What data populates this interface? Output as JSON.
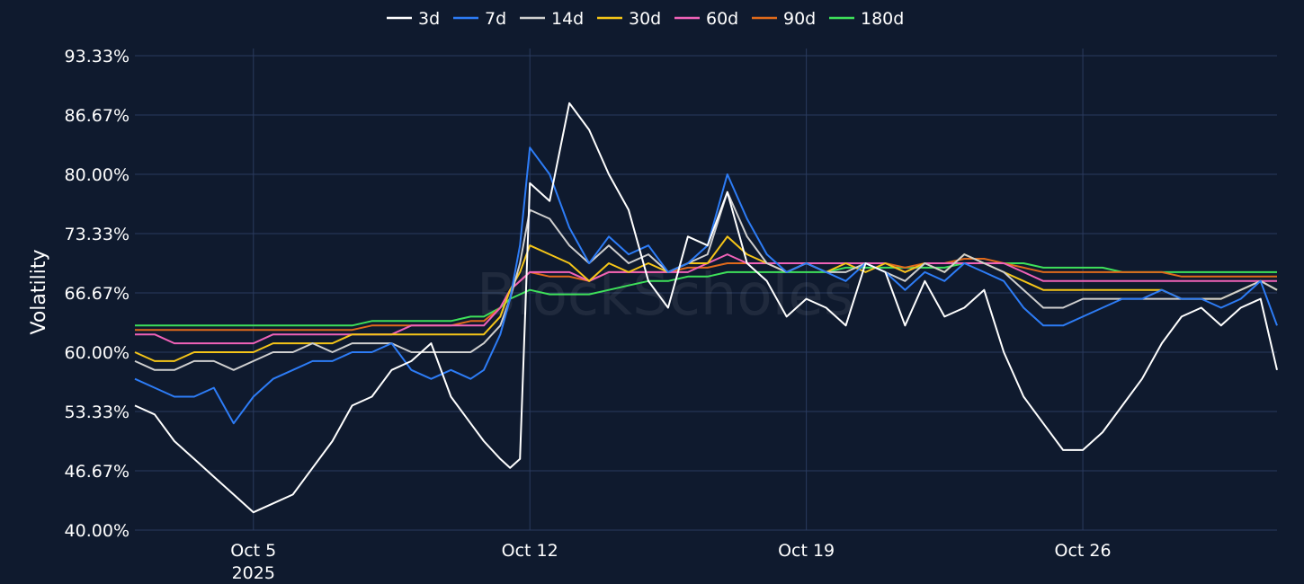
{
  "chart_data": {
    "type": "line",
    "ylabel": "Volatility",
    "watermark": "BlockScholes",
    "legend_position": "top-center",
    "grid": true,
    "x_range": [
      "2025-10-02T00:00",
      "2025-10-30T22:00"
    ],
    "ylim": [
      40.0,
      93.33
    ],
    "y_ticks": [
      "40.00%",
      "46.67%",
      "53.33%",
      "60.00%",
      "66.67%",
      "73.33%",
      "80.00%",
      "86.67%",
      "93.33%"
    ],
    "y_tick_values": [
      40.0,
      46.67,
      53.33,
      60.0,
      66.67,
      73.33,
      80.0,
      86.67,
      93.33
    ],
    "x_ticks": [
      {
        "value": "2025-10-05",
        "label": "Oct 5",
        "sublabel": "2025"
      },
      {
        "value": "2025-10-12",
        "label": "Oct 12",
        "sublabel": ""
      },
      {
        "value": "2025-10-19",
        "label": "Oct 19",
        "sublabel": ""
      },
      {
        "value": "2025-10-26",
        "label": "Oct 26",
        "sublabel": ""
      }
    ],
    "x": [
      "2025-10-02T00:00",
      "2025-10-02T12:00",
      "2025-10-03T00:00",
      "2025-10-03T12:00",
      "2025-10-04T00:00",
      "2025-10-04T12:00",
      "2025-10-05T00:00",
      "2025-10-05T12:00",
      "2025-10-06T00:00",
      "2025-10-06T12:00",
      "2025-10-07T00:00",
      "2025-10-07T12:00",
      "2025-10-08T00:00",
      "2025-10-08T12:00",
      "2025-10-09T00:00",
      "2025-10-09T12:00",
      "2025-10-10T00:00",
      "2025-10-10T12:00",
      "2025-10-10T20:00",
      "2025-10-11T06:00",
      "2025-10-11T12:00",
      "2025-10-11T18:00",
      "2025-10-12T00:00",
      "2025-10-12T12:00",
      "2025-10-13T00:00",
      "2025-10-13T12:00",
      "2025-10-14T00:00",
      "2025-10-14T12:00",
      "2025-10-15T00:00",
      "2025-10-15T12:00",
      "2025-10-16T00:00",
      "2025-10-16T12:00",
      "2025-10-17T00:00",
      "2025-10-17T12:00",
      "2025-10-18T00:00",
      "2025-10-18T12:00",
      "2025-10-19T00:00",
      "2025-10-19T12:00",
      "2025-10-20T00:00",
      "2025-10-20T12:00",
      "2025-10-21T00:00",
      "2025-10-21T12:00",
      "2025-10-22T00:00",
      "2025-10-22T12:00",
      "2025-10-23T00:00",
      "2025-10-23T12:00",
      "2025-10-24T00:00",
      "2025-10-24T12:00",
      "2025-10-25T00:00",
      "2025-10-25T12:00",
      "2025-10-26T00:00",
      "2025-10-26T12:00",
      "2025-10-27T00:00",
      "2025-10-27T12:00",
      "2025-10-28T00:00",
      "2025-10-28T12:00",
      "2025-10-29T00:00",
      "2025-10-29T12:00",
      "2025-10-30T00:00",
      "2025-10-30T12:00",
      "2025-10-30T22:00"
    ],
    "series": [
      {
        "name": "3d",
        "color": "#ffffff",
        "values": [
          54,
          53,
          50,
          48,
          46,
          44,
          42,
          43,
          44,
          47,
          50,
          54,
          55,
          58,
          59,
          61,
          55,
          52,
          50,
          48,
          47,
          48,
          79,
          77,
          88,
          85,
          80,
          76,
          68,
          65,
          73,
          72,
          78,
          70,
          68,
          64,
          66,
          65,
          63,
          70,
          69,
          63,
          68,
          64,
          65,
          67,
          60,
          55,
          52,
          49,
          49,
          51,
          54,
          57,
          61,
          64,
          65,
          63,
          65,
          66,
          58
        ]
      },
      {
        "name": "7d",
        "color": "#2d7cf6",
        "values": [
          57,
          56,
          55,
          55,
          56,
          52,
          55,
          57,
          58,
          59,
          59,
          60,
          60,
          61,
          58,
          57,
          58,
          57,
          58,
          62,
          66,
          72,
          83,
          80,
          74,
          70,
          73,
          71,
          72,
          69,
          70,
          72,
          80,
          75,
          71,
          69,
          70,
          69,
          68,
          70,
          69,
          67,
          69,
          68,
          70,
          69,
          68,
          65,
          63,
          63,
          64,
          65,
          66,
          66,
          67,
          66,
          66,
          65,
          66,
          68,
          63
        ]
      },
      {
        "name": "14d",
        "color": "#cfcfcf",
        "values": [
          59,
          58,
          58,
          59,
          59,
          58,
          59,
          60,
          60,
          61,
          60,
          61,
          61,
          61,
          60,
          60,
          60,
          60,
          61,
          63,
          66,
          70,
          76,
          75,
          72,
          70,
          72,
          70,
          71,
          69,
          70,
          71,
          78,
          73,
          70,
          69,
          70,
          69,
          69,
          70,
          69,
          68,
          70,
          69,
          71,
          70,
          69,
          67,
          65,
          65,
          66,
          66,
          66,
          66,
          66,
          66,
          66,
          66,
          67,
          68,
          67
        ]
      },
      {
        "name": "30d",
        "color": "#f5c518",
        "values": [
          60,
          59,
          59,
          60,
          60,
          60,
          60,
          61,
          61,
          61,
          61,
          62,
          62,
          62,
          62,
          62,
          62,
          62,
          62,
          64,
          67,
          69,
          72,
          71,
          70,
          68,
          70,
          69,
          70,
          69,
          70,
          70,
          73,
          71,
          70,
          69,
          70,
          69,
          70,
          69,
          70,
          69,
          70,
          69,
          71,
          70,
          69,
          68,
          67,
          67,
          67,
          67,
          67,
          67,
          67,
          66,
          66,
          66,
          67,
          68,
          67
        ]
      },
      {
        "name": "60d",
        "color": "#f062b8",
        "values": [
          62,
          62,
          61,
          61,
          61,
          61,
          61,
          62,
          62,
          62,
          62,
          62,
          62,
          62,
          63,
          63,
          63,
          63,
          63,
          65,
          67,
          68,
          69,
          69,
          69,
          68,
          69,
          69,
          69,
          69,
          69,
          70,
          71,
          70,
          70,
          70,
          70,
          70,
          70,
          70,
          70,
          69,
          70,
          70,
          70,
          70,
          70,
          69,
          68,
          68,
          68,
          68,
          68,
          68,
          68,
          68,
          68,
          68,
          68,
          68,
          68
        ]
      },
      {
        "name": "90d",
        "color": "#e06a1b",
        "values": [
          62.5,
          62.5,
          62.5,
          62.5,
          62.5,
          62.5,
          62.5,
          62.5,
          62.5,
          62.5,
          62.5,
          62.5,
          63,
          63,
          63,
          63,
          63,
          63.5,
          63.5,
          65,
          67,
          68,
          69,
          68.5,
          68.5,
          68,
          69,
          69,
          69,
          69,
          69.5,
          69.5,
          70,
          70,
          70,
          70,
          70,
          70,
          70,
          70,
          70,
          69.5,
          70,
          70,
          70.5,
          70.5,
          70,
          69.5,
          69,
          69,
          69,
          69,
          69,
          69,
          69,
          68.5,
          68.5,
          68.5,
          68.5,
          68.5,
          68.5
        ]
      },
      {
        "name": "180d",
        "color": "#3ee05a",
        "values": [
          63,
          63,
          63,
          63,
          63,
          63,
          63,
          63,
          63,
          63,
          63,
          63,
          63.5,
          63.5,
          63.5,
          63.5,
          63.5,
          64,
          64,
          65,
          66,
          66.5,
          67,
          66.5,
          66.5,
          66.5,
          67,
          67.5,
          68,
          68,
          68.5,
          68.5,
          69,
          69,
          69,
          69,
          69,
          69,
          69.5,
          69.5,
          69.5,
          69.5,
          69.5,
          69.5,
          70,
          70,
          70,
          70,
          69.5,
          69.5,
          69.5,
          69.5,
          69,
          69,
          69,
          69,
          69,
          69,
          69,
          69,
          69
        ]
      }
    ]
  }
}
